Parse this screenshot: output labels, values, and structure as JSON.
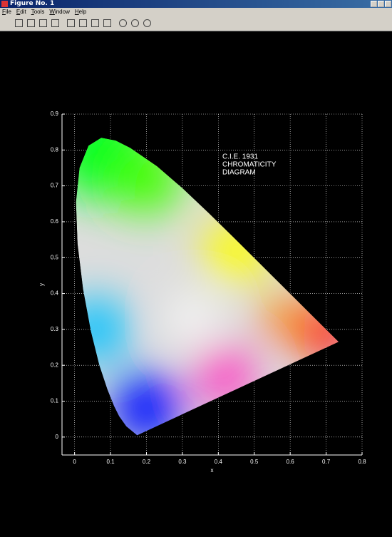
{
  "window": {
    "title": "Figure No. 1",
    "menus": [
      "File",
      "Edit",
      "Tools",
      "Window",
      "Help"
    ]
  },
  "chart_data": {
    "type": "area",
    "annotation": [
      "C.I.E. 1931",
      "CHROMATICITY",
      "DIAGRAM"
    ],
    "x_label": "x",
    "y_label": "y",
    "x": [
      0.1741,
      0.144,
      0.1241,
      0.1096,
      0.0913,
      0.0687,
      0.0454,
      0.0235,
      0.0082,
      0.0039,
      0.0139,
      0.0389,
      0.0743,
      0.1142,
      0.1547,
      0.2296,
      0.3016,
      0.3731,
      0.4441,
      0.5125,
      0.5752,
      0.627,
      0.6915,
      0.719,
      0.7347
    ],
    "values": [
      0.005,
      0.0297,
      0.0578,
      0.0868,
      0.1327,
      0.2007,
      0.295,
      0.4127,
      0.5384,
      0.6548,
      0.7502,
      0.812,
      0.8338,
      0.8262,
      0.8059,
      0.7543,
      0.6923,
      0.6245,
      0.5547,
      0.4866,
      0.4242,
      0.3725,
      0.3083,
      0.2809,
      0.2653
    ],
    "xlim": [
      -0.035,
      0.8
    ],
    "ylim": [
      -0.05,
      0.9
    ],
    "xticks": [
      0,
      0.1,
      0.2,
      0.3,
      0.4,
      0.5,
      0.6,
      0.7,
      0.8
    ],
    "yticks": [
      0,
      0.1,
      0.2,
      0.3,
      0.4,
      0.5,
      0.6,
      0.7,
      0.8,
      0.9
    ],
    "grid": true
  }
}
